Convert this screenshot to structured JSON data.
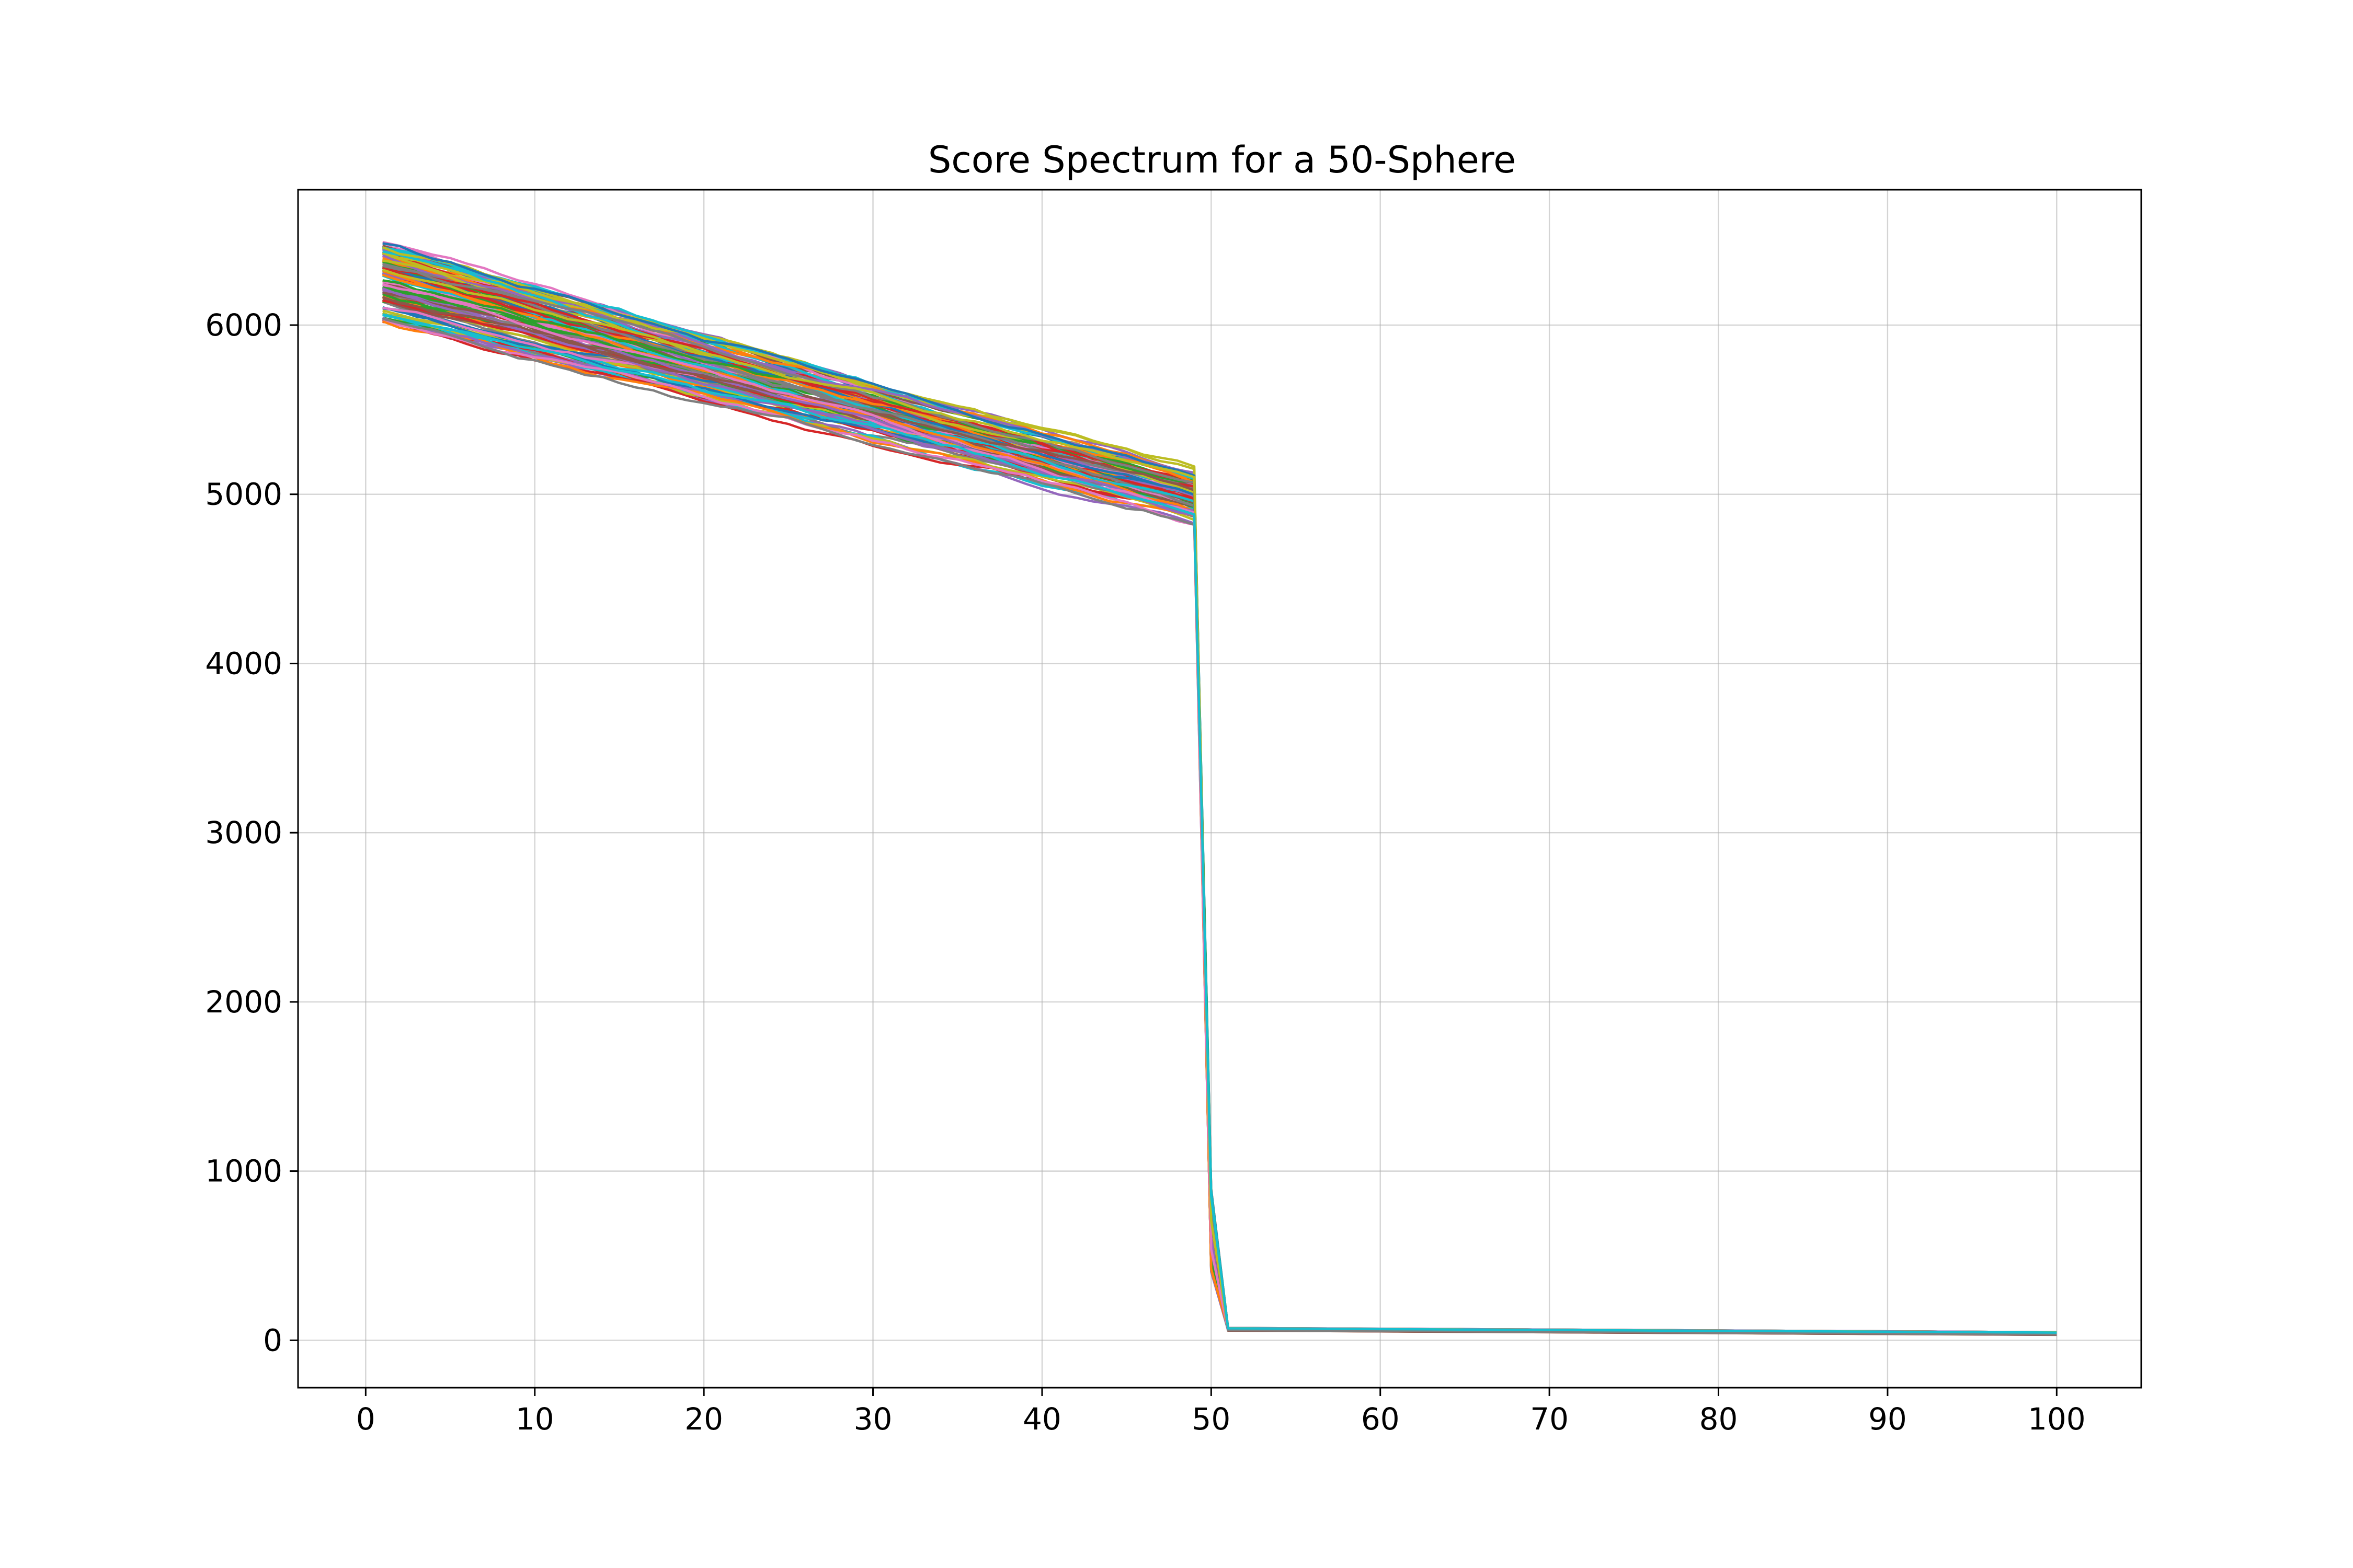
{
  "chart_data": {
    "type": "line",
    "title": "Score Spectrum for a 50-Sphere",
    "xlabel": "",
    "ylabel": "",
    "xlim": [
      -4,
      105
    ],
    "ylim": [
      -280,
      6800
    ],
    "xticks": [
      0,
      10,
      20,
      30,
      40,
      50,
      60,
      70,
      80,
      90,
      100
    ],
    "yticks": [
      0,
      1000,
      2000,
      3000,
      4000,
      5000,
      6000
    ],
    "xtick_labels": [
      "0",
      "10",
      "20",
      "30",
      "40",
      "50",
      "60",
      "70",
      "80",
      "90",
      "100"
    ],
    "ytick_labels": [
      "0",
      "1000",
      "2000",
      "3000",
      "4000",
      "5000",
      "6000"
    ],
    "grid": true,
    "legend": "none",
    "series_count": 100,
    "x": [
      1,
      2,
      3,
      4,
      5,
      6,
      7,
      8,
      9,
      10,
      11,
      12,
      13,
      14,
      15,
      16,
      17,
      18,
      19,
      20,
      21,
      22,
      23,
      24,
      25,
      26,
      27,
      28,
      29,
      30,
      31,
      32,
      33,
      34,
      35,
      36,
      37,
      38,
      39,
      40,
      41,
      42,
      43,
      44,
      45,
      46,
      47,
      48,
      49,
      50,
      51,
      52,
      53,
      54,
      55,
      56,
      57,
      58,
      59,
      60,
      61,
      62,
      63,
      64,
      65,
      66,
      67,
      68,
      69,
      70,
      71,
      72,
      73,
      74,
      75,
      76,
      77,
      78,
      79,
      80,
      81,
      82,
      83,
      84,
      85,
      86,
      87,
      88,
      89,
      90,
      91,
      92,
      93,
      94,
      95,
      96,
      97,
      98,
      99,
      100
    ],
    "profile": {
      "x_start": 1,
      "y_start_mean": 6200,
      "y_start_range": [
        6010,
        6480
      ],
      "x_drop": 49,
      "y_drop_mean": 4980,
      "y_drop_range": [
        4790,
        5160
      ],
      "x_tail_start": 50,
      "y_at_50_range": [
        400,
        900
      ],
      "x_tail_end": 100,
      "y_tail_start": 65,
      "y_tail_end": 40
    },
    "colors": [
      "#1f77b4",
      "#ff7f0e",
      "#2ca02c",
      "#d62728",
      "#9467bd",
      "#8c564b",
      "#e377c2",
      "#7f7f7f",
      "#bcbd22",
      "#17becf"
    ]
  }
}
